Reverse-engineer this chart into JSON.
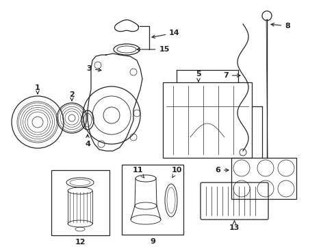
{
  "bg_color": "#ffffff",
  "line_color": "#222222",
  "fig_width": 4.89,
  "fig_height": 3.6,
  "dpi": 100
}
